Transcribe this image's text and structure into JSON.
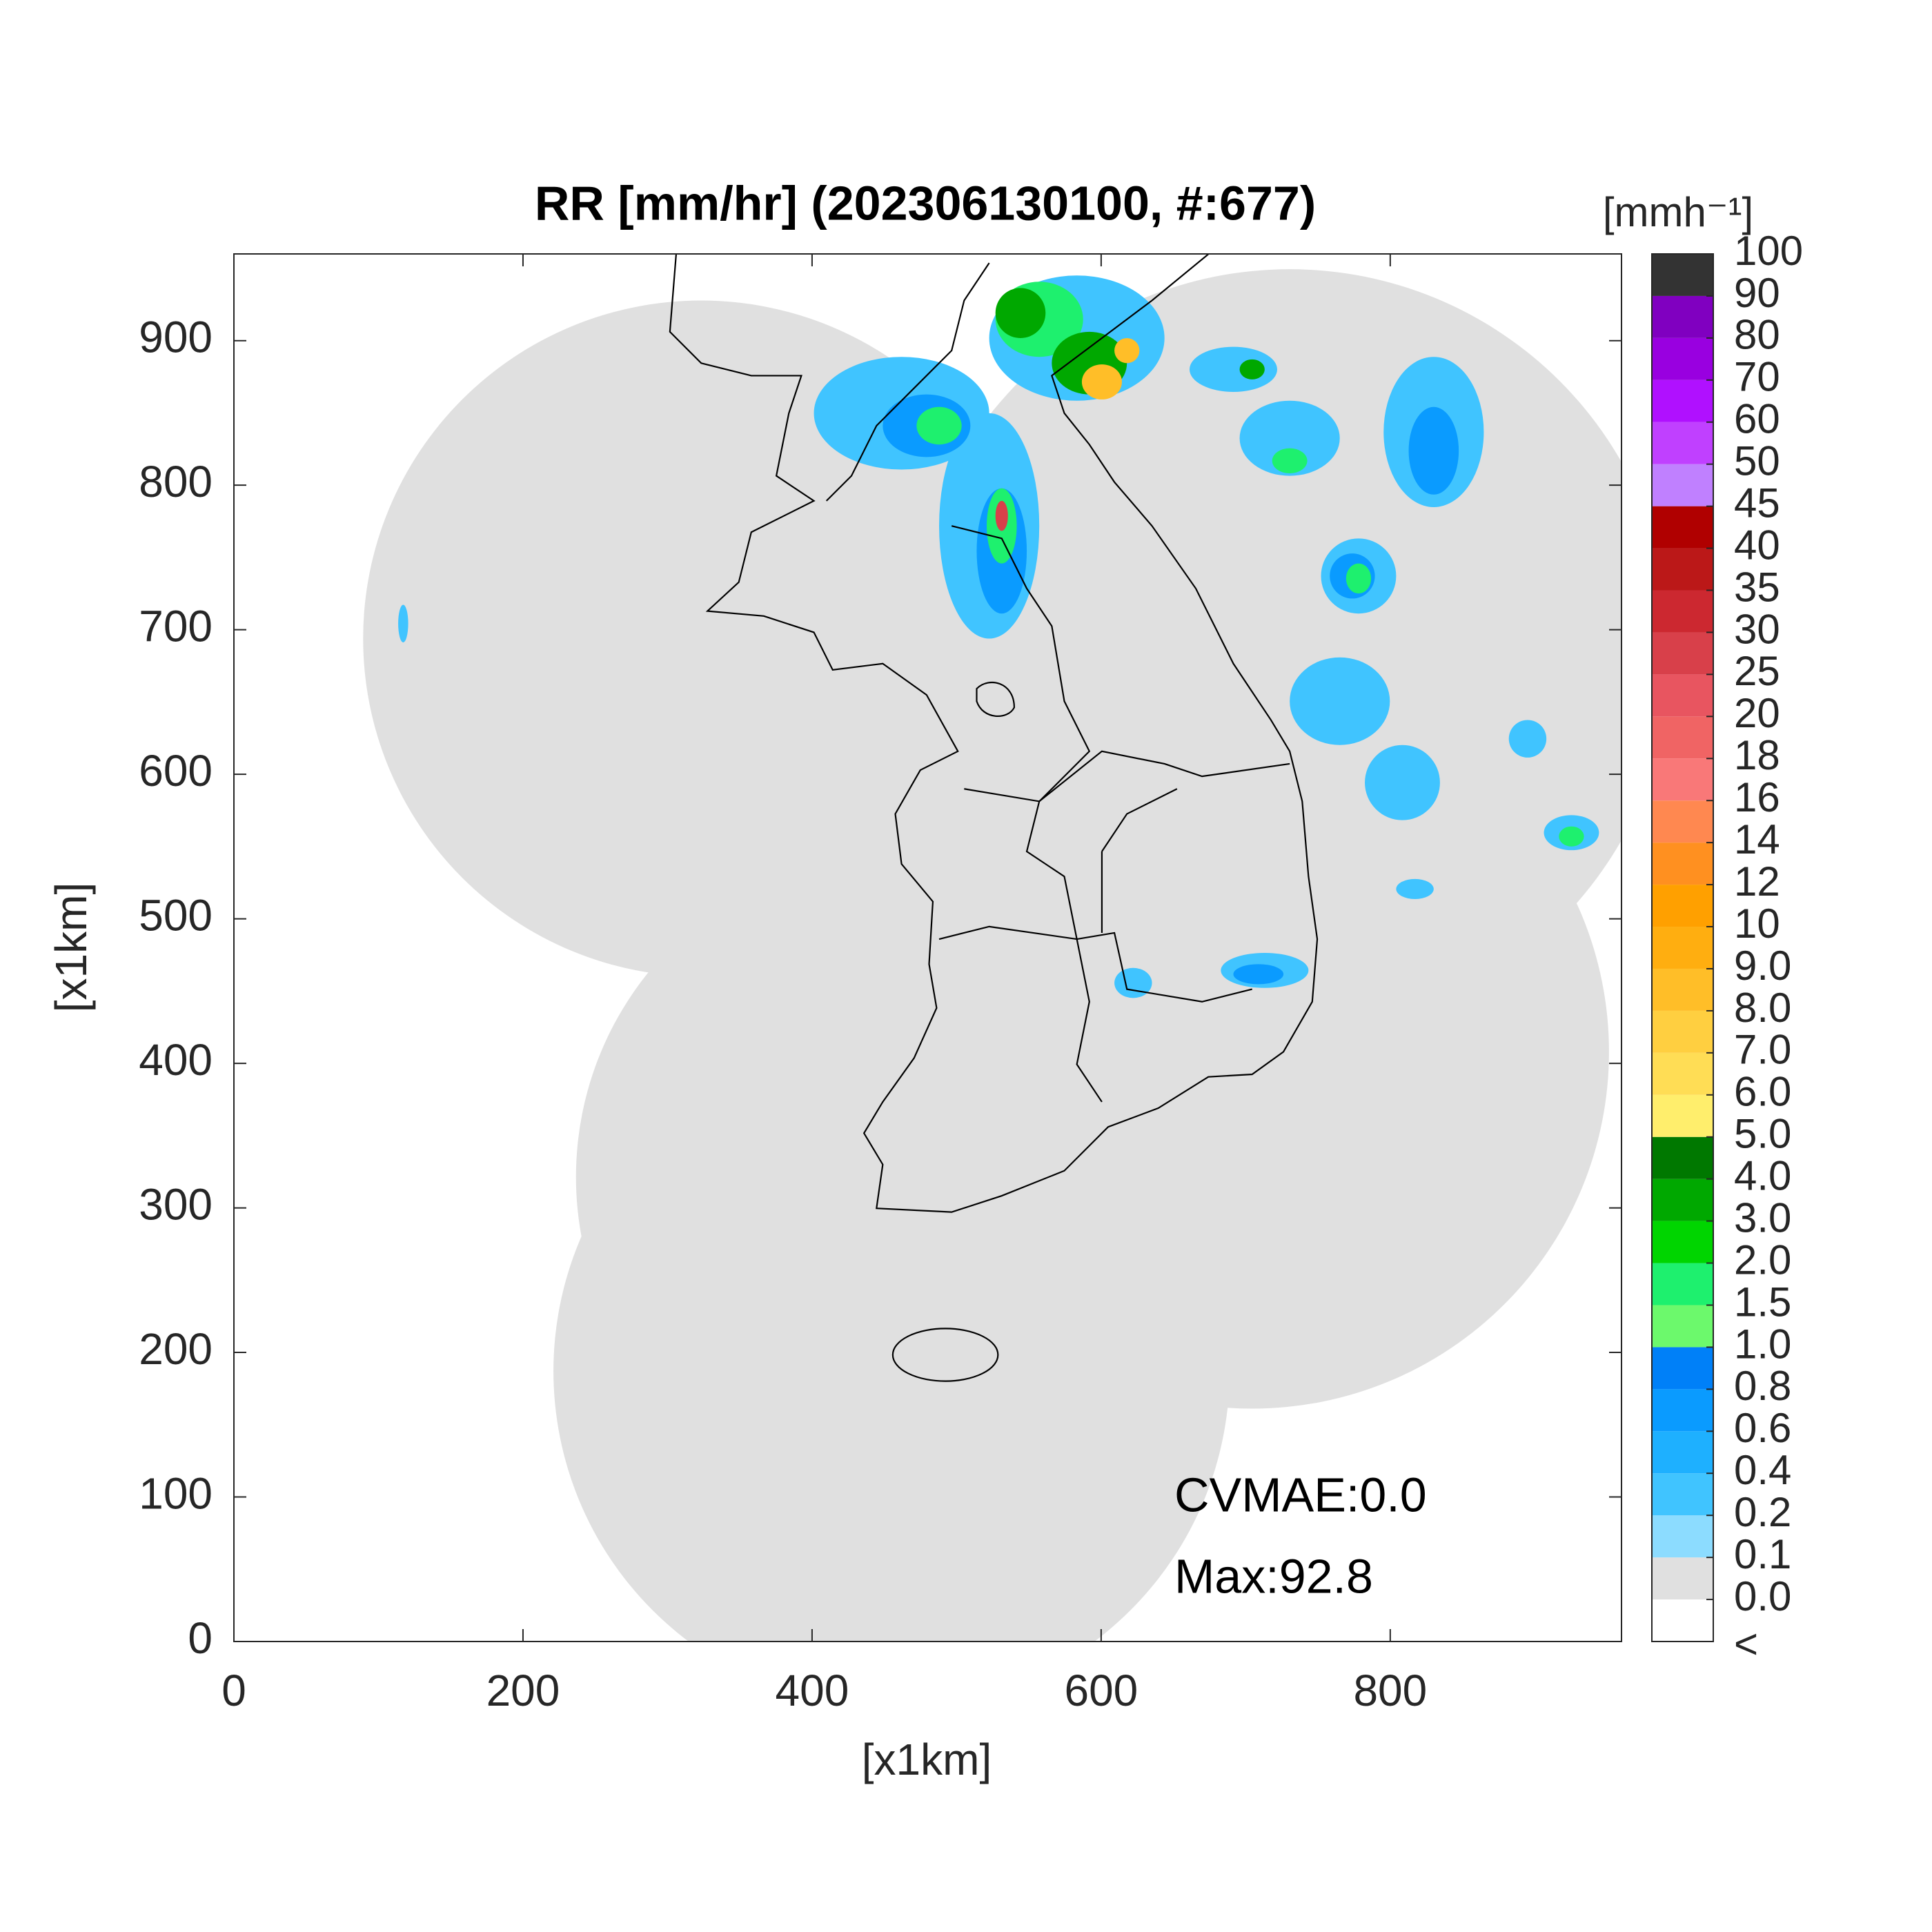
{
  "title": "RR [mm/hr] (202306130100, #:677)",
  "axes": {
    "xlabel": "[x1km]",
    "ylabel": "[x1km]",
    "xlim": [
      0,
      960
    ],
    "ylim": [
      0,
      960
    ],
    "xticks": [
      0,
      200,
      400,
      600,
      800
    ],
    "yticks": [
      0,
      100,
      200,
      300,
      400,
      500,
      600,
      700,
      800,
      900
    ]
  },
  "colorbar": {
    "unit": "[mmh⁻¹]",
    "under_label": "<",
    "levels": [
      {
        "value": 0,
        "label": "0.0"
      },
      0.1,
      0.2,
      0.4,
      0.6,
      0.8,
      {
        "value": 1,
        "label": "1.0"
      },
      1.5,
      {
        "value": 2,
        "label": "2.0"
      },
      {
        "value": 3,
        "label": "3.0"
      },
      {
        "value": 4,
        "label": "4.0"
      },
      {
        "value": 5,
        "label": "5.0"
      },
      {
        "value": 6,
        "label": "6.0"
      },
      {
        "value": 7,
        "label": "7.0"
      },
      {
        "value": 8,
        "label": "8.0"
      },
      {
        "value": 9,
        "label": "9.0"
      },
      10,
      12,
      14,
      16,
      18,
      20,
      25,
      30,
      35,
      40,
      45,
      50,
      60,
      70,
      80,
      90,
      100
    ],
    "colors": [
      "#ffffff",
      "#e0e0e0",
      "#8cdcff",
      "#40c4ff",
      "#1eb0ff",
      "#0a9bff",
      "#0080f8",
      "#6cf96c",
      "#1ef06e",
      "#00d500",
      "#00a800",
      "#007800",
      "#ffee6c",
      "#ffdd55",
      "#ffcf40",
      "#ffbe28",
      "#ffae10",
      "#ffa000",
      "#ff9020",
      "#ff8850",
      "#f97878",
      "#f06464",
      "#e85560",
      "#d8404a",
      "#cc2830",
      "#bb1818",
      "#b00000",
      "#c080ff",
      "#c040ff",
      "#b010ff",
      "#9900e0",
      "#8000c0",
      "#333333"
    ]
  },
  "annotations": {
    "cvmae": "CVMAE:0.0",
    "max": "Max:92.8"
  }
}
